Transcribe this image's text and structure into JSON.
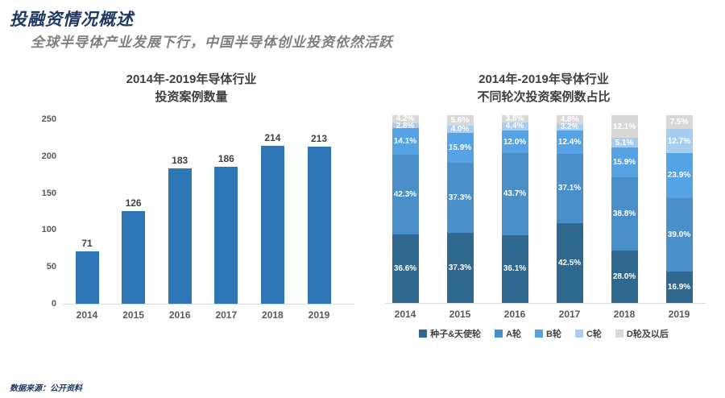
{
  "page": {
    "title": "投融资情况概述",
    "subtitle": "全球半导体产业发展下行，中国半导体创业投资依然活跃",
    "source": "数据来源：公开资料"
  },
  "colors": {
    "title_navy": "#203864",
    "subtitle_gray": "#7f7f7f",
    "axis_gray": "#d9d9d9",
    "left_bar_blue": "#2e75b6"
  },
  "chart_data": [
    {
      "type": "bar",
      "title_line1": "2014年-2019年导体行业",
      "title_line2": "投资案例数量",
      "categories": [
        "2014",
        "2015",
        "2016",
        "2017",
        "2018",
        "2019"
      ],
      "values": [
        71,
        126,
        183,
        186,
        214,
        213
      ],
      "bar_color": "#2e75b6",
      "ylim": [
        0,
        250
      ],
      "yticks": [
        0,
        50,
        100,
        150,
        200,
        250
      ],
      "grid": false,
      "data_labels": true
    },
    {
      "type": "stacked-bar",
      "title_line1": "2014年-2019年导体行业",
      "title_line2": "不同轮次投资案例数占比",
      "categories": [
        "2014",
        "2015",
        "2016",
        "2017",
        "2018",
        "2019"
      ],
      "unit": "%",
      "legend_position": "bottom",
      "series": [
        {
          "name": "种子&天使轮",
          "color": "#31688f",
          "values": [
            36.6,
            37.3,
            36.1,
            42.5,
            28.0,
            16.9
          ]
        },
        {
          "name": "A轮",
          "color": "#4a8fc7",
          "values": [
            42.3,
            37.3,
            43.7,
            37.1,
            38.8,
            39.0
          ]
        },
        {
          "name": "B轮",
          "color": "#55a3e4",
          "values": [
            14.1,
            15.9,
            12.0,
            12.4,
            15.9,
            23.9
          ]
        },
        {
          "name": "C轮",
          "color": "#a9cdee",
          "values": [
            2.8,
            4.0,
            4.4,
            3.2,
            5.1,
            12.7
          ]
        },
        {
          "name": "D轮及以后",
          "color": "#d8d8d8",
          "values": [
            4.2,
            5.6,
            3.8,
            4.8,
            12.1,
            7.5
          ]
        }
      ]
    }
  ]
}
